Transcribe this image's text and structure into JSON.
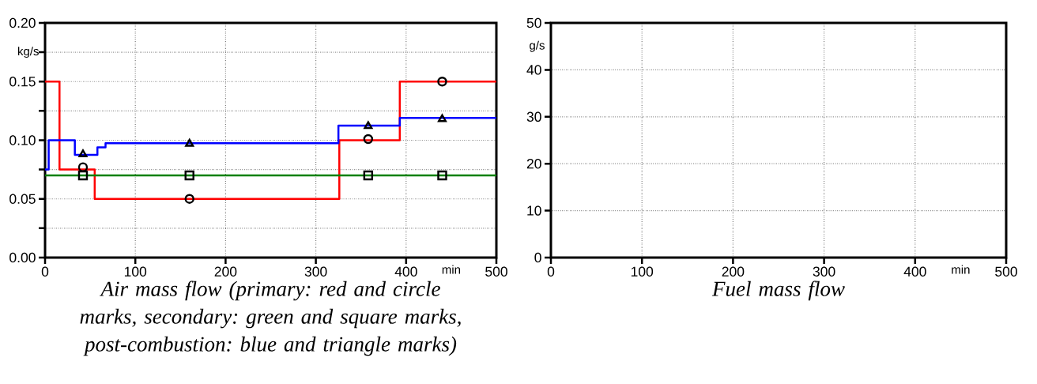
{
  "chart_data": [
    {
      "type": "step",
      "title": "Air mass flow (primary: red and circle marks, secondary: green and square marks, post-combustion: blue and triangle marks)",
      "xlabel": "min",
      "ylabel": "kg/s",
      "xlim": [
        0,
        500
      ],
      "ylim": [
        0,
        0.2
      ],
      "xticks": [
        0,
        100,
        200,
        300,
        400,
        500
      ],
      "yticks": [
        {
          "value": 0,
          "label": "0.00"
        },
        {
          "value": 0.025,
          "label": null
        },
        0.05,
        {
          "value": 0.075,
          "label": null
        },
        {
          "value": 0.1,
          "label": "0.10"
        },
        {
          "value": 0.125,
          "label": null
        },
        0.15,
        {
          "value": 0.175,
          "label": null
        },
        {
          "value": 0.2,
          "label": "0.20"
        }
      ],
      "grid": true,
      "series": [
        {
          "color": "#ff0000",
          "x": [
            0,
            16,
            55,
            326,
            393,
            500
          ],
          "values": [
            0.15,
            0.075,
            0.05,
            0.1,
            0.15,
            0.15
          ]
        },
        {
          "color": "#0000ff",
          "x": [
            0,
            4,
            33,
            58,
            67,
            325,
            393,
            500
          ],
          "values": [
            0.075,
            0.1,
            0.0875,
            0.094,
            0.0975,
            0.1125,
            0.119,
            0.119
          ]
        },
        {
          "color": "#008000",
          "x": [
            0,
            500
          ],
          "values": [
            0.07,
            0.07
          ]
        },
        {
          "type": "scatter",
          "marker": "circle",
          "color": "#000000",
          "x": [
            42,
            160,
            358,
            440
          ],
          "values": [
            0.077,
            0.05,
            0.101,
            0.15
          ]
        },
        {
          "type": "scatter",
          "marker": "square",
          "color": "#000000",
          "x": [
            42,
            160,
            358,
            440
          ],
          "values": [
            0.07,
            0.07,
            0.07,
            0.07
          ]
        },
        {
          "type": "scatter",
          "marker": "triangle",
          "color": "#000000",
          "x": [
            42,
            160,
            358,
            440
          ],
          "values": [
            0.088,
            0.097,
            0.112,
            0.118
          ]
        }
      ]
    },
    {
      "type": "line",
      "title": "Fuel mass flow",
      "xlabel": "min",
      "ylabel": "g/s",
      "xlim": [
        0,
        500
      ],
      "ylim": [
        0,
        50
      ],
      "xticks": [
        0,
        100,
        200,
        300,
        400,
        500
      ],
      "yticks": [
        0,
        10,
        20,
        30,
        40,
        50
      ],
      "grid": true
    }
  ]
}
